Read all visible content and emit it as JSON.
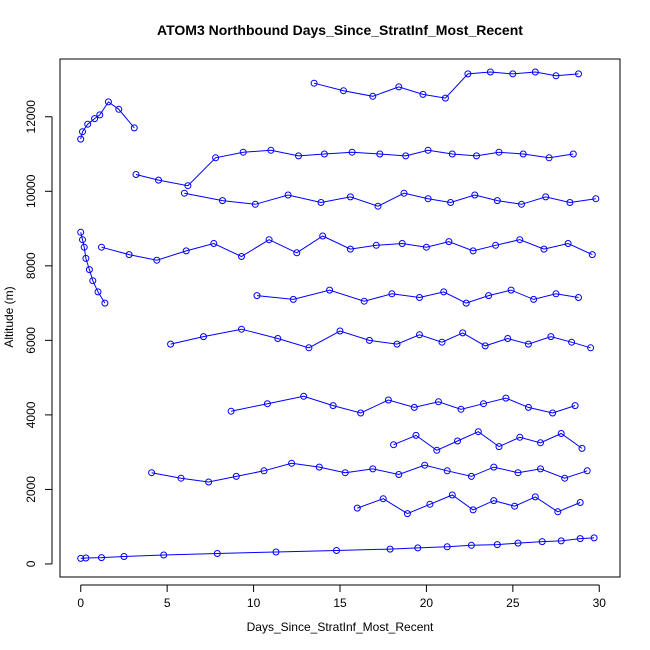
{
  "chart_data": {
    "type": "scatter",
    "title": "ATOM3 Northbound Days_Since_StratInf_Most_Recent",
    "xlabel": "Days_Since_StratInf_Most_Recent",
    "ylabel": "Altitude (m)",
    "xlim": [
      -1.2,
      31.2
    ],
    "ylim": [
      -350,
      13550
    ],
    "x_ticks": [
      0,
      5,
      10,
      15,
      20,
      25,
      30
    ],
    "x_tick_labels": [
      "0",
      "5",
      "10",
      "15",
      "20",
      "25",
      "30"
    ],
    "y_ticks": [
      0,
      2000,
      4000,
      6000,
      8000,
      10000,
      12000
    ],
    "y_tick_labels": [
      "0",
      "2000",
      "4000",
      "6000",
      "8000",
      "10000",
      "12000"
    ],
    "grid": false,
    "legend": "none",
    "series_color": "#0000ff",
    "marker": "open-circle",
    "connect_points": true,
    "series": [
      {
        "x": [
          0.0,
          0.3,
          1.2,
          2.5,
          4.8,
          7.9,
          11.3,
          14.8,
          17.9,
          19.5,
          21.2,
          22.6,
          24.1,
          25.3,
          26.7,
          27.8,
          28.9,
          29.7
        ],
        "y": [
          150,
          160,
          170,
          200,
          240,
          280,
          320,
          360,
          400,
          430,
          460,
          500,
          520,
          560,
          600,
          620,
          680,
          700
        ]
      },
      {
        "x": [
          0.0,
          0.1,
          0.4,
          0.8,
          1.1,
          1.6,
          2.2,
          3.1
        ],
        "y": [
          11400,
          11600,
          11800,
          11950,
          12050,
          12400,
          12200,
          11700
        ]
      },
      {
        "x": [
          0.0,
          0.1,
          0.2,
          0.3,
          0.5,
          0.7,
          1.0,
          1.4
        ],
        "y": [
          8900,
          8700,
          8500,
          8200,
          7900,
          7600,
          7300,
          7000
        ]
      },
      {
        "x": [
          3.2,
          4.5,
          6.2,
          7.8,
          9.4,
          11.0,
          12.6,
          14.1,
          15.7,
          17.3,
          18.8,
          20.1,
          21.5,
          22.9,
          24.2,
          25.6,
          27.1,
          28.5
        ],
        "y": [
          10450,
          10300,
          10150,
          10900,
          11050,
          11100,
          10950,
          11000,
          11050,
          11000,
          10950,
          11100,
          11000,
          10950,
          11050,
          11000,
          10900,
          11000
        ]
      },
      {
        "x": [
          13.5,
          15.2,
          16.9,
          18.4,
          19.8,
          21.1,
          22.4,
          23.7,
          25.0,
          26.3,
          27.5,
          28.8
        ],
        "y": [
          12900,
          12700,
          12550,
          12800,
          12600,
          12500,
          13150,
          13200,
          13150,
          13200,
          13100,
          13150
        ]
      },
      {
        "x": [
          1.2,
          2.8,
          4.4,
          6.1,
          7.7,
          9.3,
          10.9,
          12.5,
          14.0,
          15.6,
          17.1,
          18.6,
          20.0,
          21.3,
          22.7,
          24.0,
          25.4,
          26.8,
          28.2,
          29.6
        ],
        "y": [
          8500,
          8300,
          8150,
          8400,
          8600,
          8250,
          8700,
          8350,
          8800,
          8450,
          8550,
          8600,
          8500,
          8650,
          8400,
          8550,
          8700,
          8450,
          8600,
          8300
        ]
      },
      {
        "x": [
          4.1,
          5.8,
          7.4,
          9.0,
          10.6,
          12.2,
          13.8,
          15.3,
          16.9,
          18.4,
          19.9,
          21.2,
          22.6,
          23.9,
          25.3,
          26.6,
          28.0,
          29.3
        ],
        "y": [
          2450,
          2300,
          2200,
          2350,
          2500,
          2700,
          2600,
          2450,
          2550,
          2400,
          2650,
          2500,
          2350,
          2600,
          2450,
          2550,
          2300,
          2500
        ]
      },
      {
        "x": [
          5.2,
          7.1,
          9.3,
          11.4,
          13.2,
          15.0,
          16.7,
          18.3,
          19.6,
          20.9,
          22.1,
          23.4,
          24.7,
          25.9,
          27.2,
          28.4,
          29.5
        ],
        "y": [
          5900,
          6100,
          6300,
          6050,
          5800,
          6250,
          6000,
          5900,
          6150,
          5950,
          6200,
          5850,
          6050,
          5900,
          6100,
          5950,
          5800
        ]
      },
      {
        "x": [
          6.0,
          8.2,
          10.1,
          12.0,
          13.9,
          15.6,
          17.2,
          18.7,
          20.1,
          21.4,
          22.8,
          24.1,
          25.5,
          26.9,
          28.3,
          29.8
        ],
        "y": [
          9950,
          9750,
          9650,
          9900,
          9700,
          9850,
          9600,
          9950,
          9800,
          9700,
          9900,
          9750,
          9650,
          9850,
          9700,
          9800
        ]
      },
      {
        "x": [
          8.7,
          10.8,
          12.9,
          14.6,
          16.2,
          17.8,
          19.3,
          20.7,
          22.0,
          23.3,
          24.6,
          25.9,
          27.3,
          28.6
        ],
        "y": [
          4100,
          4300,
          4500,
          4250,
          4050,
          4400,
          4200,
          4350,
          4150,
          4300,
          4450,
          4200,
          4050,
          4250
        ]
      },
      {
        "x": [
          16.0,
          17.5,
          18.9,
          20.2,
          21.5,
          22.7,
          23.9,
          25.1,
          26.3,
          27.6,
          28.9
        ],
        "y": [
          1500,
          1750,
          1350,
          1600,
          1850,
          1450,
          1700,
          1550,
          1800,
          1400,
          1650
        ]
      },
      {
        "x": [
          18.1,
          19.4,
          20.6,
          21.8,
          23.0,
          24.2,
          25.4,
          26.6,
          27.8,
          29.0
        ],
        "y": [
          3200,
          3450,
          3050,
          3300,
          3550,
          3150,
          3400,
          3250,
          3500,
          3100
        ]
      },
      {
        "x": [
          10.2,
          12.3,
          14.4,
          16.4,
          18.0,
          19.6,
          21.0,
          22.3,
          23.6,
          24.9,
          26.2,
          27.5,
          28.8
        ],
        "y": [
          7200,
          7100,
          7350,
          7050,
          7250,
          7150,
          7300,
          7000,
          7200,
          7350,
          7100,
          7250,
          7150
        ]
      }
    ]
  }
}
